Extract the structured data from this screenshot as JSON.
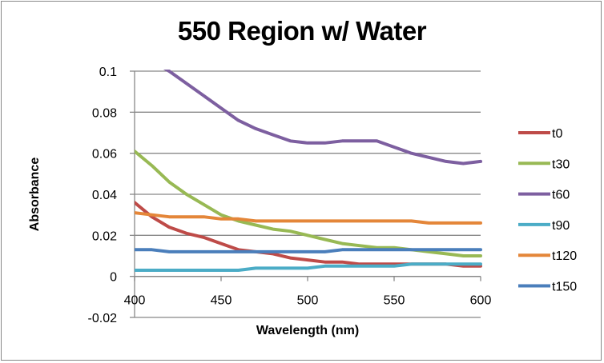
{
  "chart_data": {
    "type": "line",
    "title": "550 Region w/ Water",
    "xlabel": "Wavelength (nm)",
    "ylabel": "Absorbance",
    "xlim": [
      400,
      600
    ],
    "ylim": [
      -0.02,
      0.1
    ],
    "xticks": [
      "400",
      "450",
      "500",
      "550",
      "600"
    ],
    "yticks": [
      "0.1",
      "0.08",
      "0.06",
      "0.04",
      "0.02",
      "0",
      "-0.02"
    ],
    "grid": true,
    "legend_position": "right",
    "x": [
      400,
      410,
      420,
      430,
      440,
      450,
      460,
      470,
      480,
      490,
      500,
      510,
      520,
      530,
      540,
      550,
      560,
      570,
      580,
      590,
      600
    ],
    "series": [
      {
        "name": "t0",
        "color": "#BE4B48",
        "values": [
          0.036,
          0.029,
          0.024,
          0.021,
          0.019,
          0.016,
          0.013,
          0.012,
          0.011,
          0.009,
          0.008,
          0.007,
          0.007,
          0.006,
          0.006,
          0.006,
          0.006,
          0.006,
          0.006,
          0.005,
          0.005
        ]
      },
      {
        "name": "t30",
        "color": "#98B954",
        "values": [
          0.061,
          0.054,
          0.046,
          0.04,
          0.035,
          0.03,
          0.027,
          0.025,
          0.023,
          0.022,
          0.02,
          0.018,
          0.016,
          0.015,
          0.014,
          0.014,
          0.013,
          0.012,
          0.011,
          0.01,
          0.01
        ]
      },
      {
        "name": "t60",
        "color": "#7D5FA0",
        "values": [
          0.112,
          0.105,
          0.1,
          0.094,
          0.088,
          0.082,
          0.076,
          0.072,
          0.069,
          0.066,
          0.065,
          0.065,
          0.066,
          0.066,
          0.066,
          0.063,
          0.06,
          0.058,
          0.056,
          0.055,
          0.056
        ]
      },
      {
        "name": "t90",
        "color": "#4BACC6",
        "values": [
          0.003,
          0.003,
          0.003,
          0.003,
          0.003,
          0.003,
          0.003,
          0.004,
          0.004,
          0.004,
          0.004,
          0.005,
          0.005,
          0.005,
          0.005,
          0.005,
          0.006,
          0.006,
          0.006,
          0.006,
          0.006
        ]
      },
      {
        "name": "t120",
        "color": "#E48639",
        "values": [
          0.031,
          0.03,
          0.029,
          0.029,
          0.029,
          0.028,
          0.028,
          0.027,
          0.027,
          0.027,
          0.027,
          0.027,
          0.027,
          0.027,
          0.027,
          0.027,
          0.027,
          0.026,
          0.026,
          0.026,
          0.026
        ]
      },
      {
        "name": "t150",
        "color": "#4A7EBB",
        "values": [
          0.013,
          0.013,
          0.012,
          0.012,
          0.012,
          0.012,
          0.012,
          0.012,
          0.012,
          0.012,
          0.012,
          0.012,
          0.013,
          0.013,
          0.013,
          0.013,
          0.013,
          0.013,
          0.013,
          0.013,
          0.013
        ]
      }
    ]
  }
}
